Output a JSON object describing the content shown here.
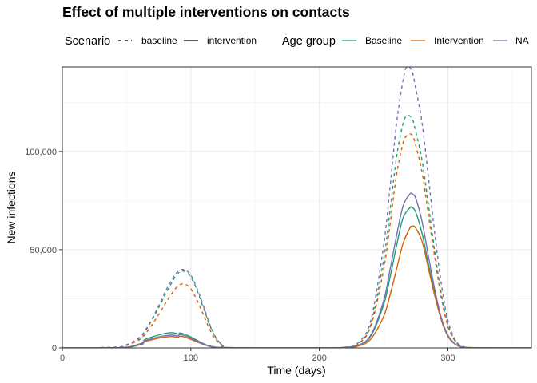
{
  "chart_data": {
    "type": "line",
    "title": "Effect of multiple interventions on contacts",
    "xlabel": "Time (days)",
    "ylabel": "New infections",
    "xlim": [
      0,
      365
    ],
    "ylim": [
      0,
      143000
    ],
    "x_ticks": [
      0,
      100,
      200,
      300
    ],
    "x_tick_labels": [
      "0",
      "100",
      "200",
      "300"
    ],
    "y_ticks": [
      0,
      50000,
      100000
    ],
    "y_tick_labels": [
      "0",
      "50,000",
      "100,000"
    ],
    "grid": true,
    "legend_position": "top",
    "legend": {
      "scenario_title": "Scenario",
      "scenario_items": [
        {
          "label": "baseline",
          "linetype": "dashed"
        },
        {
          "label": "intervention",
          "linetype": "solid"
        }
      ],
      "group_title": "Age group",
      "group_items": [
        {
          "label": "Baseline",
          "color": "#1b9e77"
        },
        {
          "label": "Intervention",
          "color": "#d95f02"
        },
        {
          "label": "NA",
          "color": "#7570b3"
        }
      ]
    },
    "series": [
      {
        "group": "Baseline",
        "scenario": "baseline",
        "color": "#1b9e77",
        "dashed": true,
        "x": [
          0,
          40,
          50,
          60,
          65,
          70,
          75,
          80,
          85,
          90,
          95,
          100,
          105,
          110,
          115,
          120,
          125,
          130,
          200,
          220,
          230,
          240,
          250,
          255,
          260,
          265,
          268,
          272,
          275,
          280,
          285,
          290,
          295,
          300,
          305,
          310,
          320,
          365
        ],
        "y": [
          0,
          300,
          1500,
          5000,
          9000,
          14500,
          20500,
          27000,
          33000,
          38000,
          39000,
          36000,
          29000,
          20000,
          11000,
          4500,
          1200,
          200,
          0,
          300,
          2000,
          12000,
          45000,
          70000,
          97000,
          114000,
          118000,
          117000,
          110000,
          95000,
          72000,
          48000,
          27000,
          12000,
          4500,
          1200,
          100,
          0
        ]
      },
      {
        "group": "Intervention",
        "scenario": "baseline",
        "color": "#d95f02",
        "dashed": true,
        "x": [
          0,
          40,
          50,
          60,
          65,
          70,
          75,
          80,
          85,
          90,
          95,
          100,
          105,
          110,
          115,
          120,
          125,
          130,
          200,
          220,
          230,
          240,
          250,
          255,
          260,
          265,
          268,
          272,
          275,
          280,
          285,
          290,
          295,
          300,
          305,
          310,
          320,
          365
        ],
        "y": [
          0,
          300,
          1300,
          4200,
          7500,
          12000,
          17000,
          22500,
          27500,
          31500,
          32500,
          30000,
          24000,
          16500,
          9000,
          3700,
          1000,
          150,
          0,
          300,
          1800,
          11000,
          40000,
          63000,
          88000,
          104000,
          108000,
          108500,
          103000,
          89000,
          67000,
          45000,
          25000,
          11000,
          4000,
          1000,
          100,
          0
        ]
      },
      {
        "group": "NA",
        "scenario": "baseline",
        "color": "#7570b3",
        "dashed": true,
        "x": [
          0,
          40,
          50,
          60,
          65,
          70,
          75,
          80,
          85,
          90,
          95,
          100,
          105,
          110,
          115,
          120,
          125,
          130,
          200,
          220,
          230,
          240,
          250,
          255,
          260,
          265,
          268,
          272,
          275,
          280,
          285,
          290,
          295,
          300,
          305,
          310,
          320,
          365
        ],
        "y": [
          0,
          300,
          1600,
          5300,
          9500,
          15000,
          21500,
          28500,
          34500,
          39000,
          39800,
          37000,
          30000,
          21000,
          11500,
          4800,
          1300,
          200,
          0,
          400,
          2500,
          14000,
          52000,
          82000,
          114000,
          136000,
          143000,
          141000,
          132000,
          114000,
          86000,
          57000,
          32000,
          14000,
          5000,
          1300,
          100,
          0
        ]
      },
      {
        "group": "Baseline",
        "scenario": "intervention",
        "color": "#1b9e77",
        "dashed": false,
        "x": [
          0,
          40,
          50,
          55,
          60,
          63,
          64,
          70,
          75,
          80,
          85,
          88,
          90,
          91,
          92,
          95,
          100,
          105,
          110,
          115,
          120,
          125,
          130,
          200,
          220,
          230,
          240,
          250,
          255,
          260,
          265,
          270,
          272,
          275,
          280,
          285,
          290,
          295,
          300,
          305,
          310,
          320,
          365
        ],
        "y": [
          0,
          100,
          400,
          1000,
          2000,
          2800,
          4200,
          5600,
          6600,
          7400,
          7800,
          7500,
          7000,
          7500,
          7600,
          7000,
          5600,
          3800,
          2100,
          900,
          300,
          80,
          0,
          0,
          200,
          1200,
          6000,
          22000,
          36000,
          52000,
          66000,
          71000,
          71500,
          69000,
          58000,
          42000,
          27000,
          14000,
          6000,
          2200,
          600,
          50,
          0
        ]
      },
      {
        "group": "Intervention",
        "scenario": "intervention",
        "color": "#d95f02",
        "dashed": false,
        "x": [
          0,
          40,
          50,
          55,
          60,
          63,
          64,
          70,
          75,
          80,
          85,
          88,
          90,
          91,
          92,
          95,
          100,
          105,
          110,
          115,
          120,
          125,
          130,
          200,
          220,
          230,
          240,
          250,
          255,
          260,
          265,
          270,
          272,
          275,
          280,
          285,
          290,
          295,
          300,
          305,
          310,
          320,
          365
        ],
        "y": [
          0,
          80,
          300,
          700,
          1500,
          2100,
          3200,
          4200,
          5000,
          5500,
          5800,
          5600,
          5300,
          5800,
          6000,
          5500,
          4400,
          3000,
          1700,
          700,
          250,
          60,
          0,
          0,
          150,
          900,
          4500,
          16000,
          27000,
          40000,
          53000,
          60500,
          62000,
          61000,
          54000,
          40000,
          26000,
          14000,
          6000,
          2200,
          600,
          50,
          0
        ]
      },
      {
        "group": "NA",
        "scenario": "intervention",
        "color": "#7570b3",
        "dashed": false,
        "x": [
          0,
          40,
          50,
          55,
          60,
          63,
          64,
          70,
          75,
          80,
          85,
          88,
          90,
          91,
          92,
          95,
          100,
          105,
          110,
          115,
          120,
          125,
          130,
          200,
          220,
          230,
          240,
          250,
          255,
          260,
          265,
          270,
          272,
          275,
          280,
          285,
          290,
          295,
          300,
          305,
          310,
          320,
          365
        ],
        "y": [
          0,
          90,
          350,
          800,
          1700,
          2400,
          3600,
          4800,
          5600,
          6200,
          6500,
          6300,
          6000,
          6700,
          6900,
          6300,
          5000,
          3400,
          1900,
          800,
          270,
          70,
          0,
          0,
          200,
          1300,
          6500,
          24000,
          40000,
          57000,
          72000,
          78000,
          78500,
          76000,
          64000,
          46000,
          29000,
          15000,
          6500,
          2400,
          650,
          50,
          0
        ]
      }
    ]
  }
}
